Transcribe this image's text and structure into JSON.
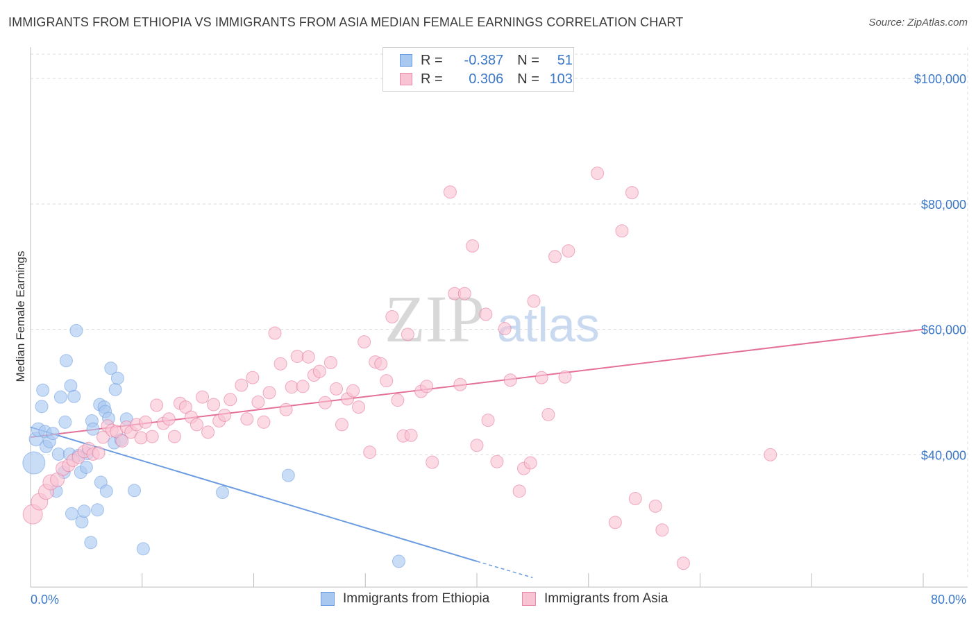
{
  "title": "IMMIGRANTS FROM ETHIOPIA VS IMMIGRANTS FROM ASIA MEDIAN FEMALE EARNINGS CORRELATION CHART",
  "source": "Source: ZipAtlas.com",
  "legend": {
    "r_label": "R =",
    "n_label": "N =",
    "rows": [
      {
        "r": "-0.387",
        "n": "51",
        "color": "#a9c8f0",
        "border": "#6a9be0"
      },
      {
        "r": "0.306",
        "n": "103",
        "color": "#f8c4d4",
        "border": "#e889a8"
      }
    ]
  },
  "watermark": {
    "zip": "ZIP",
    "atlas": "atlas"
  },
  "bottom_legend": [
    "Immigrants from Ethiopia",
    "Immigrants from Asia"
  ],
  "chart_data": {
    "type": "scatter",
    "title": "IMMIGRANTS FROM ETHIOPIA VS IMMIGRANTS FROM ASIA MEDIAN FEMALE EARNINGS CORRELATION CHART",
    "xlabel": "",
    "ylabel": "Median Female Earnings",
    "xlim": [
      0,
      80
    ],
    "ylim": [
      20000,
      105000
    ],
    "x_tick_labels": [
      "0.0%",
      "80.0%"
    ],
    "y_ticks": [
      40000,
      60000,
      80000,
      100000
    ],
    "y_tick_labels": [
      "$40,000",
      "$60,000",
      "$80,000",
      "$100,000"
    ],
    "grid": true,
    "series": [
      {
        "name": "Immigrants from Ethiopia",
        "color": "#6a9be0",
        "fill": "#a9c8f0",
        "trend": {
          "x": [
            0,
            40
          ],
          "y": [
            44400,
            23000
          ],
          "dashed_to": [
            45,
            20400
          ]
        },
        "points": [
          [
            0.3,
            38700,
            16
          ],
          [
            0.5,
            42500,
            10
          ],
          [
            0.7,
            44000,
            10
          ],
          [
            1.0,
            47700,
            9
          ],
          [
            1.1,
            50300,
            9
          ],
          [
            1.3,
            43700,
            9
          ],
          [
            1.4,
            41300,
            9
          ],
          [
            1.7,
            42100,
            9
          ],
          [
            2.0,
            43400,
            9
          ],
          [
            2.3,
            34200,
            9
          ],
          [
            2.5,
            40100,
            9
          ],
          [
            2.7,
            49200,
            9
          ],
          [
            3.0,
            37200,
            9
          ],
          [
            3.1,
            45200,
            9
          ],
          [
            3.2,
            55000,
            9
          ],
          [
            3.5,
            40100,
            9
          ],
          [
            3.6,
            51000,
            9
          ],
          [
            3.7,
            30600,
            9
          ],
          [
            3.9,
            49300,
            9
          ],
          [
            4.1,
            59800,
            9
          ],
          [
            4.3,
            39900,
            9
          ],
          [
            4.5,
            37200,
            9
          ],
          [
            4.6,
            29300,
            9
          ],
          [
            4.8,
            31000,
            9
          ],
          [
            5.0,
            38000,
            9
          ],
          [
            5.1,
            40200,
            9
          ],
          [
            5.4,
            26000,
            9
          ],
          [
            5.5,
            45400,
            9
          ],
          [
            5.6,
            44100,
            9
          ],
          [
            6.0,
            31200,
            9
          ],
          [
            6.2,
            48000,
            9
          ],
          [
            6.3,
            35600,
            9
          ],
          [
            6.6,
            47600,
            9
          ],
          [
            6.7,
            46900,
            9
          ],
          [
            6.8,
            34200,
            9
          ],
          [
            7.0,
            45800,
            9
          ],
          [
            7.2,
            53800,
            9
          ],
          [
            7.5,
            41900,
            9
          ],
          [
            7.6,
            50400,
            9
          ],
          [
            7.8,
            52200,
            9
          ],
          [
            8.1,
            42400,
            9
          ],
          [
            8.6,
            45700,
            9
          ],
          [
            9.3,
            34300,
            9
          ],
          [
            10.1,
            25000,
            9
          ],
          [
            17.2,
            34000,
            9
          ],
          [
            23.1,
            36700,
            9
          ],
          [
            33.0,
            23000,
            9
          ]
        ]
      },
      {
        "name": "Immigrants from Asia",
        "color": "#e46f98",
        "fill": "#f8c4d4",
        "trend": {
          "x": [
            0,
            80
          ],
          "y": [
            42800,
            60000
          ]
        },
        "points": [
          [
            0.2,
            30500,
            14
          ],
          [
            0.8,
            32500,
            12
          ],
          [
            1.4,
            34100,
            11
          ],
          [
            1.8,
            35600,
            11
          ],
          [
            2.4,
            36000,
            10
          ],
          [
            2.9,
            37800,
            10
          ],
          [
            3.4,
            38300,
            9
          ],
          [
            3.8,
            39100,
            9
          ],
          [
            4.3,
            39600,
            9
          ],
          [
            4.8,
            40500,
            9
          ],
          [
            5.2,
            41000,
            9
          ],
          [
            5.6,
            40100,
            9
          ],
          [
            6.1,
            40300,
            9
          ],
          [
            6.5,
            42800,
            9
          ],
          [
            6.9,
            44600,
            9
          ],
          [
            7.3,
            43900,
            9
          ],
          [
            7.7,
            43700,
            9
          ],
          [
            8.2,
            42200,
            9
          ],
          [
            8.6,
            44400,
            9
          ],
          [
            9.0,
            43600,
            9
          ],
          [
            9.5,
            44800,
            9
          ],
          [
            9.9,
            42700,
            9
          ],
          [
            10.3,
            45200,
            9
          ],
          [
            10.9,
            42900,
            9
          ],
          [
            11.3,
            47900,
            9
          ],
          [
            11.9,
            45000,
            9
          ],
          [
            12.4,
            45700,
            9
          ],
          [
            12.9,
            42900,
            9
          ],
          [
            13.4,
            48200,
            9
          ],
          [
            13.9,
            47600,
            9
          ],
          [
            14.4,
            46000,
            9
          ],
          [
            14.9,
            44800,
            9
          ],
          [
            15.4,
            49200,
            9
          ],
          [
            15.9,
            43600,
            9
          ],
          [
            16.4,
            48000,
            9
          ],
          [
            16.9,
            45400,
            9
          ],
          [
            17.4,
            46300,
            9
          ],
          [
            17.9,
            48800,
            9
          ],
          [
            18.9,
            51100,
            9
          ],
          [
            19.4,
            45700,
            9
          ],
          [
            19.9,
            52300,
            9
          ],
          [
            20.4,
            48400,
            9
          ],
          [
            20.9,
            45200,
            9
          ],
          [
            21.4,
            49900,
            9
          ],
          [
            21.9,
            59400,
            9
          ],
          [
            22.4,
            54500,
            9
          ],
          [
            22.9,
            47200,
            9
          ],
          [
            23.4,
            50800,
            9
          ],
          [
            23.9,
            55700,
            9
          ],
          [
            24.4,
            50900,
            9
          ],
          [
            24.9,
            55600,
            9
          ],
          [
            25.4,
            52700,
            9
          ],
          [
            25.9,
            53300,
            9
          ],
          [
            26.4,
            48300,
            9
          ],
          [
            26.9,
            54700,
            9
          ],
          [
            27.4,
            50500,
            9
          ],
          [
            27.9,
            44800,
            9
          ],
          [
            28.4,
            48900,
            9
          ],
          [
            28.9,
            50200,
            9
          ],
          [
            29.4,
            47600,
            9
          ],
          [
            29.9,
            58000,
            9
          ],
          [
            30.4,
            40400,
            9
          ],
          [
            30.9,
            54800,
            9
          ],
          [
            31.4,
            54500,
            9
          ],
          [
            31.9,
            51800,
            9
          ],
          [
            32.4,
            62000,
            9
          ],
          [
            32.9,
            48700,
            9
          ],
          [
            33.4,
            43000,
            9
          ],
          [
            33.8,
            59200,
            9
          ],
          [
            34.1,
            43100,
            9
          ],
          [
            35.0,
            50100,
            9
          ],
          [
            35.5,
            50900,
            9
          ],
          [
            36.0,
            38800,
            9
          ],
          [
            37.6,
            81900,
            9
          ],
          [
            38.0,
            65700,
            9
          ],
          [
            38.5,
            51200,
            9
          ],
          [
            38.9,
            65700,
            9
          ],
          [
            39.6,
            73300,
            9
          ],
          [
            40.0,
            41500,
            9
          ],
          [
            40.8,
            62400,
            9
          ],
          [
            41.0,
            45500,
            9
          ],
          [
            41.8,
            38900,
            9
          ],
          [
            42.5,
            60100,
            9
          ],
          [
            43.0,
            51900,
            9
          ],
          [
            43.8,
            34200,
            9
          ],
          [
            44.2,
            37800,
            9
          ],
          [
            44.8,
            38700,
            9
          ],
          [
            45.1,
            64500,
            9
          ],
          [
            45.8,
            52300,
            9
          ],
          [
            46.4,
            46400,
            9
          ],
          [
            47.0,
            71600,
            9
          ],
          [
            47.9,
            52400,
            9
          ],
          [
            48.2,
            72500,
            9
          ],
          [
            50.8,
            84900,
            9
          ],
          [
            52.4,
            29200,
            9
          ],
          [
            53.0,
            75700,
            9
          ],
          [
            53.9,
            81800,
            9
          ],
          [
            54.2,
            33000,
            9
          ],
          [
            56.0,
            31800,
            9
          ],
          [
            56.6,
            28000,
            9
          ],
          [
            58.5,
            22700,
            9
          ],
          [
            66.3,
            40000,
            9
          ]
        ]
      }
    ]
  }
}
